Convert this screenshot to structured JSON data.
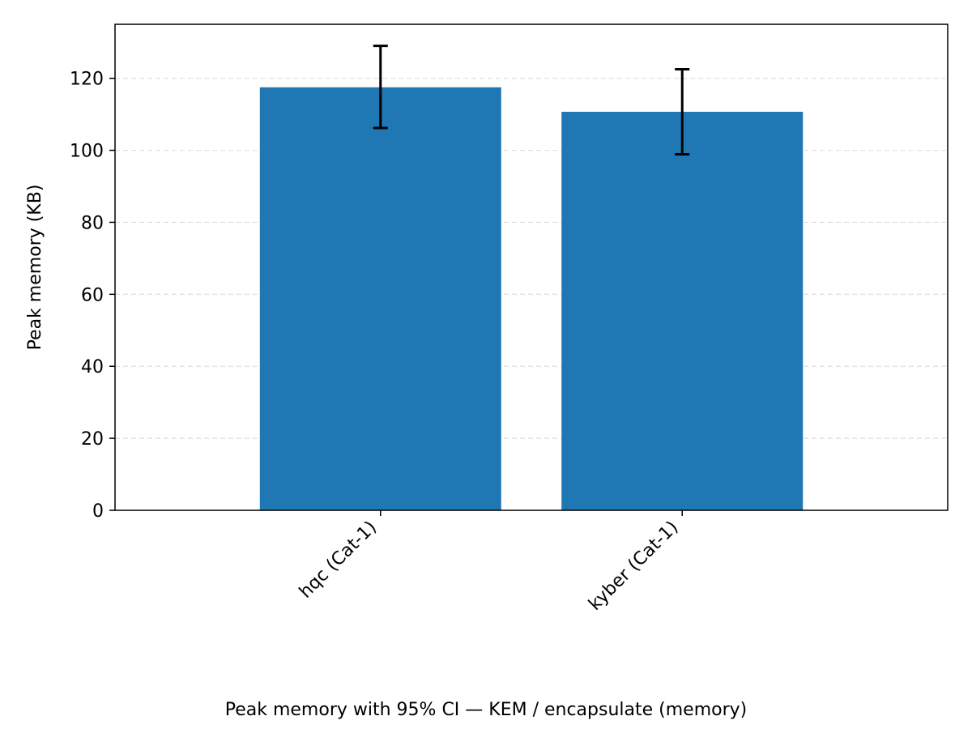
{
  "chart_data": {
    "type": "bar",
    "categories": [
      "hqc (Cat-1)",
      "kyber (Cat-1)"
    ],
    "values": [
      117.5,
      110.7
    ],
    "ci_low": [
      106.2,
      98.9
    ],
    "ci_high": [
      129.0,
      122.5
    ],
    "xlabel": "",
    "ylabel": "Peak memory (KB)",
    "ylim": [
      0,
      135
    ],
    "yticks": [
      0,
      20,
      40,
      60,
      80,
      100,
      120
    ],
    "grid": "y-dashed",
    "legend": "none",
    "bar_color": "#1f77b4"
  },
  "caption": "Peak memory with 95% CI — KEM / encapsulate (memory)"
}
